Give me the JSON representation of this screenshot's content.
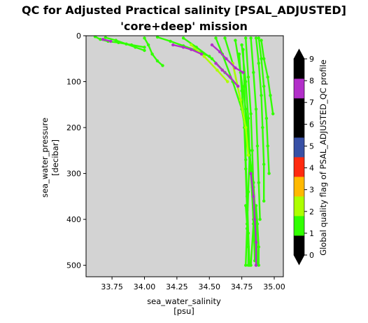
{
  "chart_data": {
    "type": "scatter",
    "title": "QC for Adjusted Practical salinity [PSAL_ADJUSTED]",
    "subtitle": "'core+deep' mission",
    "xlabel": "sea_water_salinity",
    "xlabel_unit": "[psu]",
    "ylabel": "sea_water_pressure",
    "ylabel_unit": "[decibar]",
    "xlim": [
      33.55,
      35.07
    ],
    "ylim": [
      525,
      0
    ],
    "x_ticks": [
      "33.75",
      "34.00",
      "34.25",
      "34.50",
      "34.75",
      "35.00"
    ],
    "x_tick_values": [
      33.75,
      34.0,
      34.25,
      34.5,
      34.75,
      35.0
    ],
    "y_ticks": [
      "0",
      "100",
      "200",
      "300",
      "400",
      "500"
    ],
    "y_tick_values": [
      0,
      100,
      200,
      300,
      400,
      500
    ],
    "background_color": "#d3d3d3",
    "grid": false,
    "colorbar": {
      "label": "Global quality flag of PSAL_ADJUSTED_QC profile",
      "ticks": [
        "0",
        "1",
        "2",
        "3",
        "4",
        "5",
        "6",
        "7",
        "8",
        "9"
      ],
      "colors": [
        "#000000",
        "#31ff00",
        "#adff00",
        "#ffb900",
        "#ff2a0f",
        "#3850a5",
        "#000000",
        "#000000",
        "#b22fc9",
        "#000000"
      ],
      "extend": "both"
    },
    "series": [
      {
        "flag": 1,
        "color": "#31ff00",
        "profiles": [
          {
            "x": [
              33.62,
              33.66,
              33.72,
              33.8,
              33.9,
              34.0
            ],
            "y": [
              2,
              8,
              12,
              15,
              20,
              25
            ]
          },
          {
            "x": [
              33.7,
              33.78,
              33.86,
              33.93,
              34.0
            ],
            "y": [
              4,
              10,
              18,
              25,
              32
            ]
          },
          {
            "x": [
              34.0,
              34.03,
              34.06,
              34.1,
              34.14
            ],
            "y": [
              5,
              20,
              40,
              55,
              65
            ]
          },
          {
            "x": [
              34.1,
              34.2,
              34.3,
              34.4,
              34.5
            ],
            "y": [
              3,
              12,
              22,
              32,
              45
            ]
          },
          {
            "x": [
              34.3,
              34.4,
              34.52,
              34.62,
              34.72
            ],
            "y": [
              5,
              25,
              50,
              80,
              110
            ]
          },
          {
            "x": [
              34.55,
              34.6,
              34.68,
              34.75,
              34.8,
              34.84,
              34.86,
              34.87
            ],
            "y": [
              5,
              40,
              100,
              160,
              240,
              320,
              420,
              495
            ]
          },
          {
            "x": [
              34.62,
              34.68,
              34.74,
              34.79,
              34.82,
              34.84,
              34.85
            ],
            "y": [
              5,
              60,
              140,
              220,
              300,
              400,
              490
            ]
          },
          {
            "x": [
              34.7,
              34.74,
              34.78,
              34.81,
              34.83,
              34.84,
              34.82
            ],
            "y": [
              10,
              80,
              160,
              250,
              330,
              410,
              500
            ]
          },
          {
            "x": [
              34.75,
              34.78,
              34.8,
              34.81,
              34.8,
              34.79,
              34.78
            ],
            "y": [
              20,
              100,
              180,
              260,
              340,
              420,
              500
            ]
          },
          {
            "x": [
              34.76,
              34.77,
              34.78,
              34.78,
              34.79,
              34.8,
              34.81
            ],
            "y": [
              30,
              110,
              190,
              270,
              350,
              430,
              500
            ]
          },
          {
            "x": [
              34.78,
              34.8,
              34.82,
              34.83,
              34.84,
              34.85,
              34.86
            ],
            "y": [
              5,
              90,
              170,
              250,
              330,
              420,
              500
            ]
          },
          {
            "x": [
              34.82,
              34.84,
              34.86,
              34.87,
              34.88,
              34.89
            ],
            "y": [
              5,
              80,
              160,
              240,
              320,
              400
            ]
          },
          {
            "x": [
              34.86,
              34.88,
              34.9,
              34.91,
              34.92,
              34.92
            ],
            "y": [
              5,
              60,
              130,
              200,
              280,
              360
            ]
          },
          {
            "x": [
              34.88,
              34.9,
              34.92,
              34.94,
              34.95,
              34.96
            ],
            "y": [
              5,
              50,
              110,
              180,
              240,
              300
            ]
          },
          {
            "x": [
              34.9,
              34.92,
              34.95,
              34.97,
              34.99
            ],
            "y": [
              10,
              50,
              90,
              130,
              170
            ]
          },
          {
            "x": [
              34.73,
              34.75,
              34.77,
              34.78,
              34.79
            ],
            "y": [
              40,
              120,
              200,
              290,
              380
            ]
          },
          {
            "x": [
              34.78,
              34.79,
              34.8,
              34.8
            ],
            "y": [
              370,
              410,
              460,
              500
            ]
          },
          {
            "x": [
              34.86,
              34.87,
              34.88,
              34.88
            ],
            "y": [
              370,
              410,
              460,
              500
            ]
          }
        ]
      },
      {
        "flag": 2,
        "color": "#adff00",
        "profiles": [
          {
            "x": [
              34.36,
              34.46,
              34.56,
              34.64
            ],
            "y": [
              20,
              45,
              75,
              100
            ]
          },
          {
            "x": [
              34.68,
              34.74,
              34.78,
              34.8
            ],
            "y": [
              60,
              140,
              200,
              260
            ]
          }
        ]
      },
      {
        "flag": 8,
        "color": "#b22fc9",
        "profiles": [
          {
            "x": [
              33.68,
              33.74
            ],
            "y": [
              8,
              12
            ]
          },
          {
            "x": [
              34.22,
              34.3,
              34.36,
              34.44
            ],
            "y": [
              20,
              25,
              30,
              40
            ]
          },
          {
            "x": [
              34.52,
              34.58,
              34.63,
              34.7,
              34.76
            ],
            "y": [
              20,
              35,
              50,
              70,
              80
            ]
          },
          {
            "x": [
              34.55,
              34.6,
              34.66,
              34.72
            ],
            "y": [
              60,
              75,
              90,
              110
            ]
          },
          {
            "x": [
              34.82,
              34.84,
              34.85,
              34.86,
              34.86
            ],
            "y": [
              300,
              350,
              400,
              450,
              500
            ]
          }
        ]
      }
    ]
  }
}
